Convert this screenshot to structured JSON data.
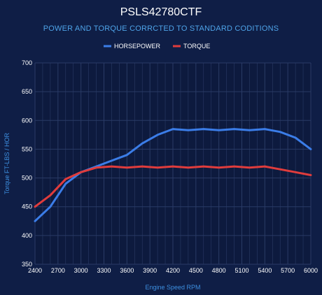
{
  "chart_data": {
    "type": "line",
    "title": "PSLS42780CTF",
    "subtitle": "POWER AND TORQUE CORRCTED TO STANDARD CODITIONS",
    "xlabel": "Engine Speed RPM",
    "ylabel": "Torque FT-LBS / HOR",
    "xlim": [
      2400,
      6000
    ],
    "ylim": [
      350,
      700
    ],
    "xticks": [
      2400,
      2700,
      3000,
      3300,
      3600,
      3900,
      4200,
      4500,
      4800,
      5100,
      5400,
      5700,
      6000
    ],
    "yticks": [
      350,
      400,
      450,
      500,
      550,
      600,
      650,
      700
    ],
    "grid": true,
    "legend_position": "top-center",
    "x": [
      2400,
      2600,
      2800,
      3000,
      3200,
      3400,
      3600,
      3800,
      4000,
      4200,
      4400,
      4600,
      4800,
      5000,
      5200,
      5400,
      5600,
      5800,
      6000
    ],
    "series": [
      {
        "name": "HORSEPOWER",
        "color": "#3b7de8",
        "values": [
          425,
          450,
          490,
          510,
          520,
          530,
          540,
          560,
          575,
          585,
          583,
          585,
          583,
          585,
          583,
          585,
          580,
          570,
          550
        ]
      },
      {
        "name": "TORQUE",
        "color": "#e03c3c",
        "values": [
          450,
          470,
          498,
          510,
          518,
          520,
          518,
          520,
          518,
          520,
          518,
          520,
          518,
          520,
          518,
          520,
          515,
          510,
          505
        ]
      }
    ]
  },
  "colors": {
    "background": "#0f1e46",
    "plot_background": "#0d1a3e",
    "grid": "#2a3b66",
    "tick_text": "#ffffff",
    "axis_label": "#3d8fe0",
    "subtitle": "#4ea3e8"
  }
}
